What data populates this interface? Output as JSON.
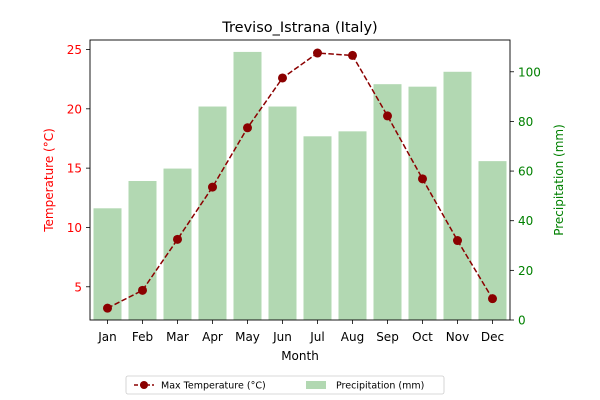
{
  "chart_data": {
    "type": "bar+line",
    "title": "Treviso_Istrana (Italy)",
    "xlabel": "Month",
    "ylabel_left": "Temperature (°C)",
    "ylabel_right": "Precipitation (mm)",
    "categories": [
      "Jan",
      "Feb",
      "Mar",
      "Apr",
      "May",
      "Jun",
      "Jul",
      "Aug",
      "Sep",
      "Oct",
      "Nov",
      "Dec"
    ],
    "y_left_lim": [
      2.2,
      25.8
    ],
    "y_left_ticks": [
      5,
      10,
      15,
      20,
      25
    ],
    "y_right_lim": [
      0,
      112.8
    ],
    "y_right_ticks": [
      0,
      20,
      40,
      60,
      80,
      100
    ],
    "legend_position": "bottom-center",
    "grid": false,
    "series": [
      {
        "name": "Max Temperature (°C)",
        "kind": "line",
        "axis": "left",
        "color": "#8b0000",
        "values": [
          3.2,
          4.7,
          9.0,
          13.4,
          18.4,
          22.6,
          24.7,
          24.5,
          19.4,
          14.1,
          8.9,
          4.0
        ]
      },
      {
        "name": "Precipitation (mm)",
        "kind": "bar",
        "axis": "right",
        "color": "#b2d8b2",
        "values": [
          45,
          56,
          61,
          86,
          108,
          86,
          74,
          76,
          95,
          94,
          100,
          64
        ]
      }
    ],
    "colors": {
      "left_axis": "#ff0000",
      "right_axis": "#008000",
      "frame": "#000000"
    }
  }
}
